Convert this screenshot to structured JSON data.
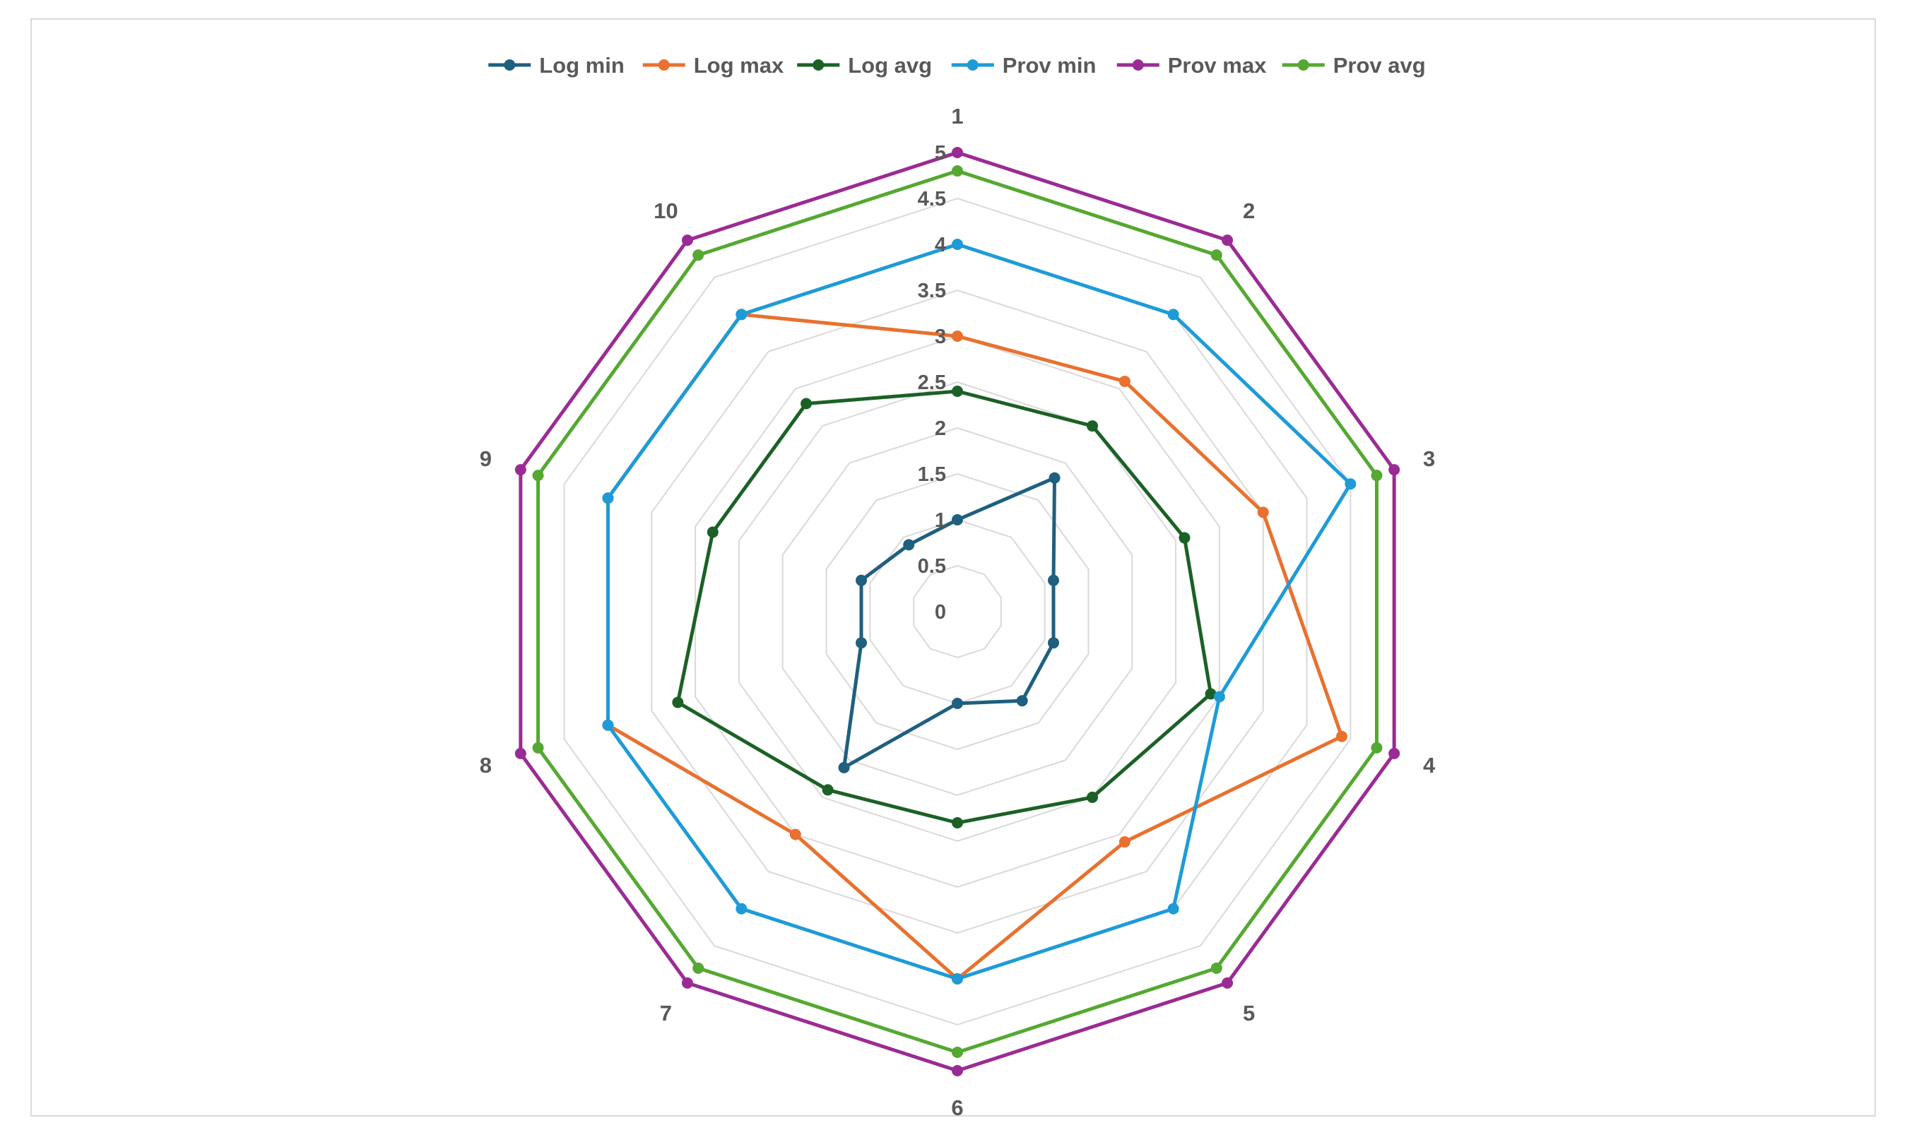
{
  "chart_data": {
    "type": "radar",
    "title": "",
    "categories": [
      "1",
      "2",
      "3",
      "4",
      "5",
      "6",
      "7",
      "8",
      "9",
      "10"
    ],
    "rlim": [
      0,
      5
    ],
    "ticks": [
      "0",
      "0.5",
      "1",
      "1.5",
      "2",
      "2.5",
      "3",
      "3.5",
      "4",
      "4.5",
      "5"
    ],
    "grid": true,
    "legend_position": "top",
    "series": [
      {
        "name": "Log min",
        "color": "#1f5f7f",
        "values": [
          1,
          1.8,
          1.1,
          1.1,
          1.2,
          1,
          2.1,
          1.1,
          1.1,
          0.9
        ]
      },
      {
        "name": "Log max",
        "color": "#e8712f",
        "values": [
          3,
          3.1,
          3.5,
          4.4,
          3.1,
          4,
          3,
          4,
          4,
          4
        ]
      },
      {
        "name": "Log avg",
        "color": "#1b6126",
        "values": [
          2.4,
          2.5,
          2.6,
          2.9,
          2.5,
          2.3,
          2.4,
          3.2,
          2.8,
          2.8
        ]
      },
      {
        "name": "Prov min",
        "color": "#1e9bd7",
        "values": [
          4,
          4,
          4.5,
          3,
          4,
          4,
          4,
          4,
          4,
          4
        ]
      },
      {
        "name": "Prov max",
        "color": "#9b2b94",
        "values": [
          5,
          5,
          5,
          5,
          5,
          5,
          5,
          5,
          5,
          5
        ]
      },
      {
        "name": "Prov avg",
        "color": "#55a831",
        "values": [
          4.8,
          4.8,
          4.8,
          4.8,
          4.8,
          4.8,
          4.8,
          4.8,
          4.8,
          4.8
        ]
      }
    ]
  }
}
